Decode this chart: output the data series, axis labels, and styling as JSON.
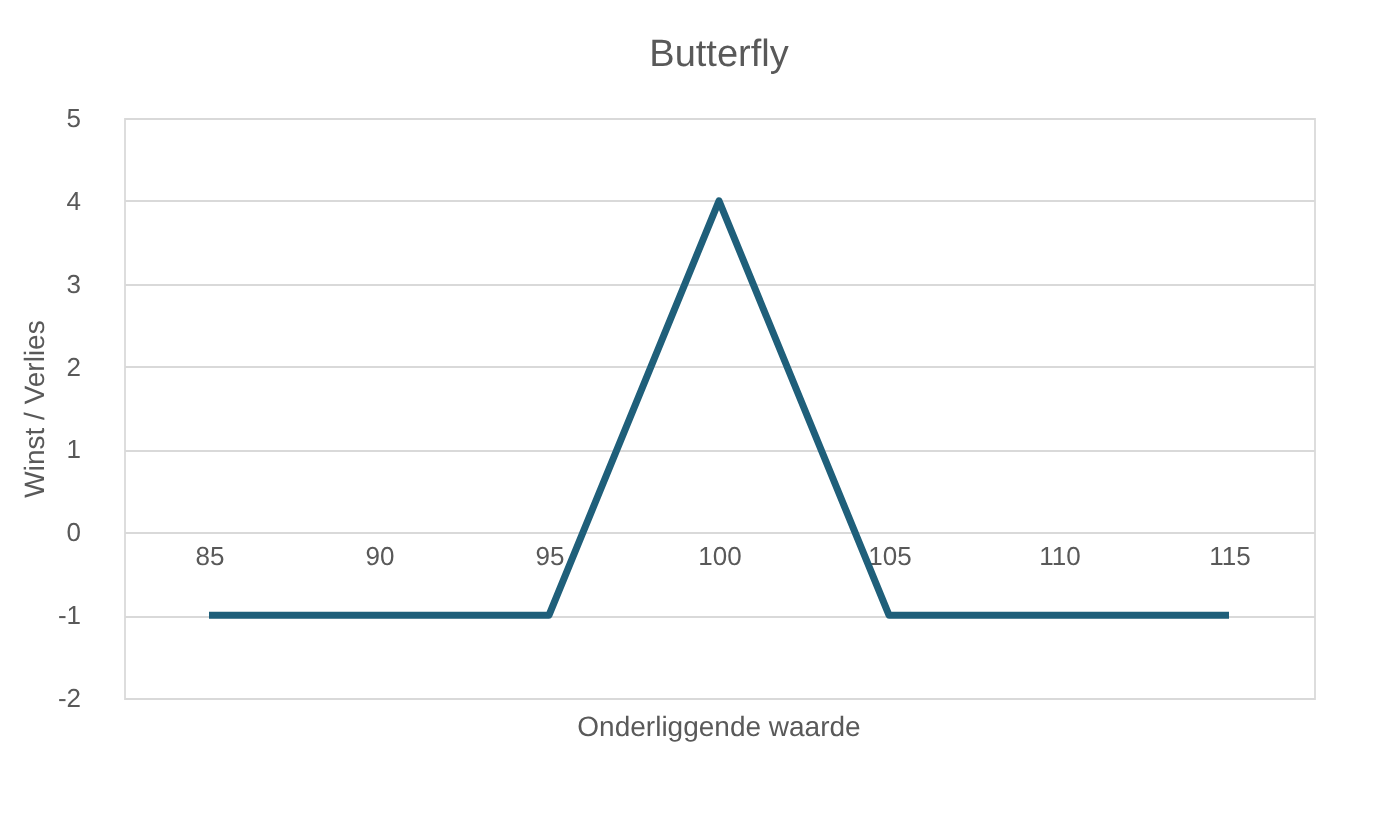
{
  "chart_data": {
    "type": "line",
    "title": "Butterfly",
    "xlabel": "Onderliggende waarde",
    "ylabel": "Winst / Verlies",
    "categories": [
      "85",
      "90",
      "95",
      "100",
      "105",
      "110",
      "115"
    ],
    "series": [
      {
        "color": "#1f5f7a",
        "values": [
          -1,
          -1,
          -1,
          4,
          -1,
          -1,
          -1
        ]
      }
    ],
    "ylim": [
      -2,
      5
    ],
    "yticks": [
      -2,
      -1,
      0,
      1,
      2,
      3,
      4,
      5
    ],
    "grid": "y",
    "marker": "none",
    "line_style": "solid"
  }
}
